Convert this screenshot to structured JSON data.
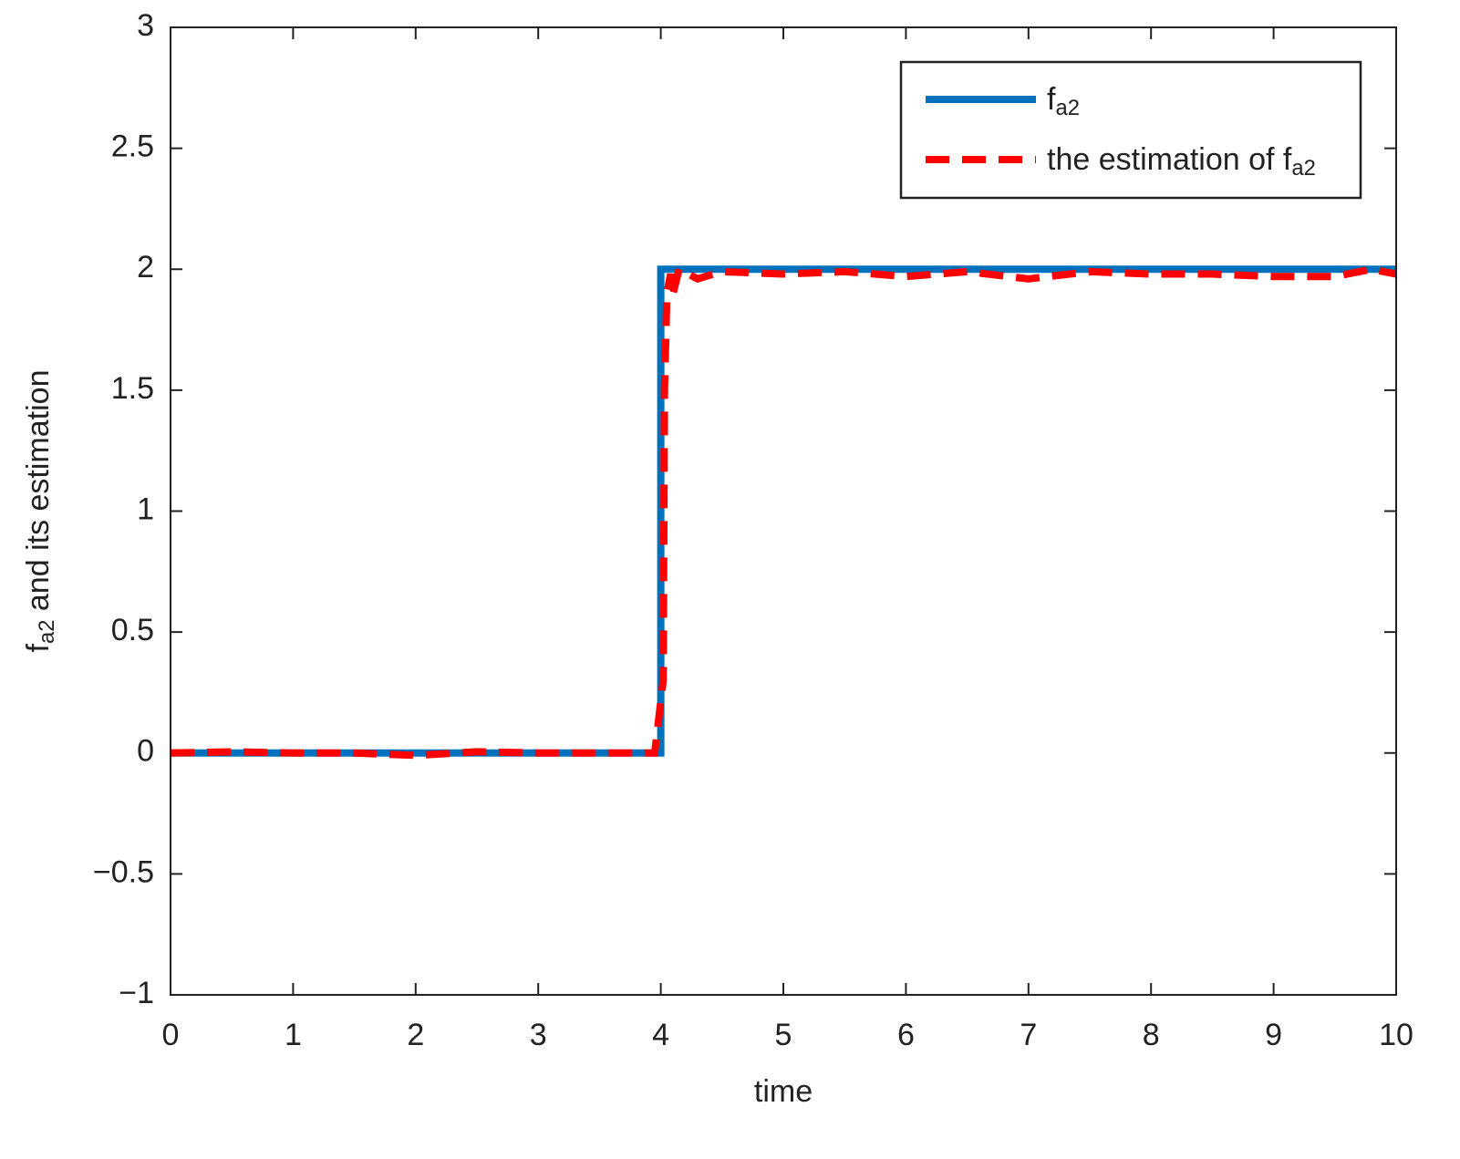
{
  "chart_data": {
    "type": "line",
    "xlabel": [
      {
        "text": "time"
      }
    ],
    "ylabel": [
      {
        "text": "f"
      },
      {
        "text": "a2",
        "sub": true
      },
      {
        "text": " and its estimation"
      }
    ],
    "xlim": [
      0,
      10
    ],
    "xticks": [
      0,
      1,
      2,
      3,
      4,
      5,
      6,
      7,
      8,
      9,
      10
    ],
    "ylim": [
      -1,
      3
    ],
    "yticks": [
      {
        "value": -1,
        "label": "−1"
      },
      {
        "value": -0.5,
        "label": "−0.5"
      },
      0,
      0.5,
      1,
      1.5,
      2,
      2.5,
      3
    ],
    "grid": false,
    "legend": "upper right",
    "series": [
      {
        "name": [
          {
            "text": "f"
          },
          {
            "text": "a2",
            "sub": true
          }
        ],
        "color": "#0072bd",
        "dash": false,
        "x": [
          0,
          4,
          4,
          10
        ],
        "values": [
          0,
          0,
          2,
          2
        ]
      },
      {
        "name": [
          {
            "text": "the estimation of f"
          },
          {
            "text": "a2",
            "sub": true
          }
        ],
        "color": "#ff0000",
        "dash": true,
        "x": [
          0,
          0.5,
          1,
          1.5,
          2,
          2.5,
          3,
          3.5,
          3.95,
          4.02,
          4.03,
          4.05,
          4.08,
          4.1,
          4.15,
          4.3,
          4.5,
          5,
          5.5,
          6,
          6.5,
          7,
          7.5,
          8,
          8.5,
          9,
          9.5,
          9.8,
          10
        ],
        "values": [
          0,
          0.005,
          0,
          0,
          -0.01,
          0.005,
          0,
          0,
          0,
          0.3,
          1.5,
          1.9,
          1.98,
          1.9,
          2.0,
          1.96,
          1.99,
          1.98,
          1.99,
          1.97,
          1.99,
          1.96,
          1.99,
          1.98,
          1.98,
          1.97,
          1.97,
          2.0,
          1.98
        ]
      }
    ]
  }
}
